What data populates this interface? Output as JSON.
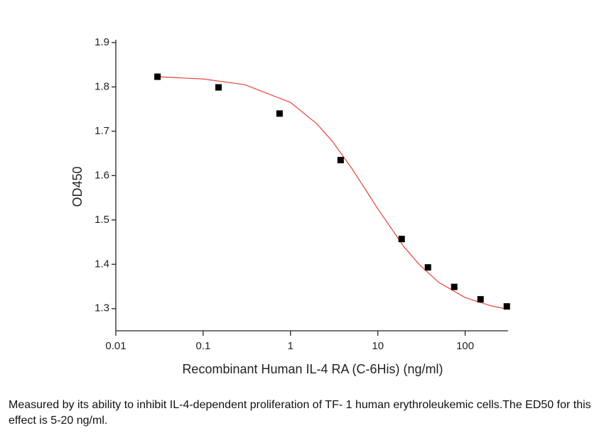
{
  "chart_data": {
    "type": "scatter",
    "x_label": "Recombinant Human IL-4 RA (C-6His) (ng/ml)",
    "y_label": "OD450",
    "x": [
      0.03,
      0.15,
      0.75,
      3.75,
      18.75,
      37.5,
      75,
      150,
      300
    ],
    "series": [
      {
        "color": "#000000",
        "values": [
          1.823,
          1.799,
          1.74,
          1.635,
          1.457,
          1.393,
          1.349,
          1.321,
          1.305
        ]
      }
    ],
    "fit": {
      "color": "#e8423a",
      "x": [
        0.03,
        0.1,
        0.3,
        1,
        2,
        3,
        5,
        8,
        10,
        20,
        30,
        50,
        100,
        200,
        300
      ],
      "values": [
        1.823,
        1.818,
        1.805,
        1.765,
        1.717,
        1.678,
        1.617,
        1.555,
        1.525,
        1.439,
        1.399,
        1.359,
        1.325,
        1.306,
        1.299
      ]
    },
    "xlog": true,
    "xlim": [
      0.01,
      310
    ],
    "xticks": [
      0.01,
      0.1,
      1,
      10,
      100
    ],
    "ylim": [
      1.25,
      1.9
    ],
    "yticks": [
      1.3,
      1.4,
      1.5,
      1.6,
      1.7,
      1.8,
      1.9
    ]
  },
  "caption": "Measured by its ability to inhibit IL-4-dependent proliferation of TF- 1 human erythroleukemic cells.The ED50 for this effect is 5-20 ng/ml."
}
